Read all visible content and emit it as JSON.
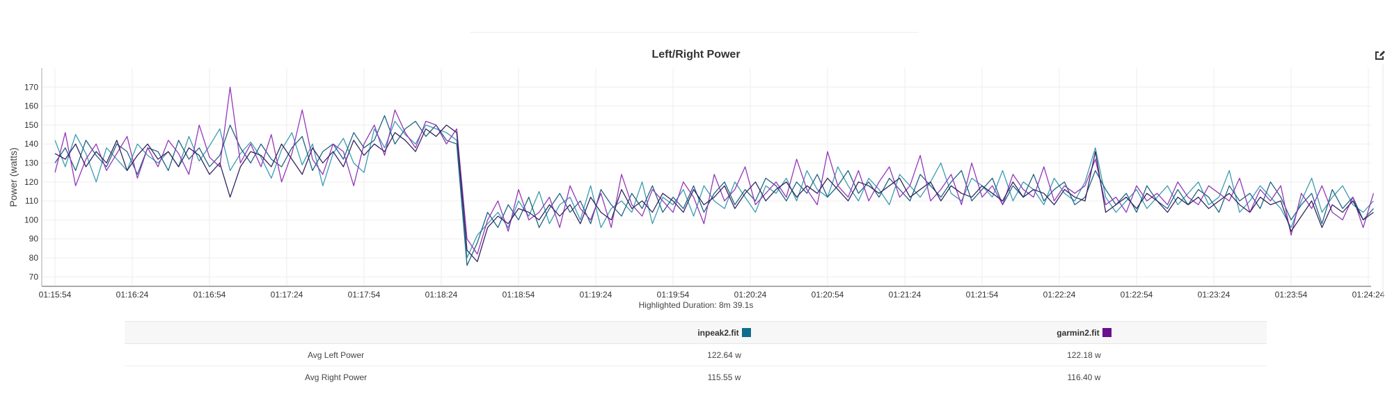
{
  "chart_data": {
    "type": "line",
    "title": "Left/Right Power",
    "ylabel": "Power (watts)",
    "xlabel": "",
    "ylim": [
      65,
      180
    ],
    "yticks": [
      70,
      80,
      90,
      100,
      110,
      120,
      130,
      140,
      150,
      160,
      170
    ],
    "xticks": [
      "01:15:54",
      "01:16:24",
      "01:16:54",
      "01:17:24",
      "01:17:54",
      "01:18:24",
      "01:18:54",
      "01:19:24",
      "01:19:54",
      "01:20:24",
      "01:20:54",
      "01:21:24",
      "01:21:54",
      "01:22:24",
      "01:22:54",
      "01:23:24",
      "01:23:54",
      "01:24:24"
    ],
    "x_range": [
      "01:15:54",
      "01:24:26"
    ],
    "sample_interval_s": 4,
    "grid": true,
    "series": [
      {
        "color": "#3a9cb0",
        "values": [
          142,
          128,
          145,
          135,
          120,
          138,
          132,
          126,
          140,
          134,
          130,
          136,
          128,
          144,
          131,
          139,
          148,
          126,
          135,
          141,
          133,
          122,
          137,
          146,
          129,
          140,
          118,
          135,
          143,
          130,
          125,
          148,
          138,
          152,
          145,
          140,
          150,
          148,
          146,
          142,
          80,
          92,
          98,
          104,
          96,
          110,
          102,
          115,
          98,
          108,
          112,
          100,
          118,
          96,
          106,
          110,
          104,
          120,
          98,
          112,
          108,
          116,
          102,
          118,
          110,
          106,
          120,
          112,
          104,
          118,
          114,
          122,
          110,
          126,
          116,
          112,
          128,
          118,
          110,
          122,
          116,
          108,
          124,
          118,
          112,
          120,
          130,
          114,
          110,
          122,
          118,
          112,
          126,
          110,
          120,
          116,
          108,
          122,
          114,
          110,
          120,
          138,
          112,
          104,
          110,
          116,
          106,
          112,
          118,
          108,
          114,
          120,
          108,
          112,
          126,
          104,
          110,
          118,
          112,
          106,
          96,
          110,
          122,
          104,
          112,
          118,
          108,
          104,
          110
        ]
      },
      {
        "color": "#1f6380",
        "values": [
          130,
          138,
          126,
          142,
          134,
          128,
          140,
          136,
          124,
          138,
          136,
          126,
          142,
          132,
          138,
          128,
          134,
          150,
          138,
          130,
          140,
          132,
          128,
          138,
          144,
          126,
          136,
          140,
          132,
          146,
          138,
          142,
          155,
          140,
          148,
          152,
          144,
          150,
          142,
          140,
          76,
          88,
          104,
          96,
          108,
          100,
          112,
          96,
          106,
          114,
          104,
          110,
          98,
          116,
          108,
          102,
          114,
          106,
          118,
          104,
          112,
          106,
          118,
          104,
          114,
          120,
          108,
          116,
          110,
          122,
          118,
          110,
          120,
          114,
          124,
          112,
          118,
          126,
          114,
          120,
          112,
          122,
          116,
          110,
          124,
          118,
          112,
          120,
          126,
          110,
          116,
          122,
          108,
          118,
          112,
          124,
          110,
          116,
          120,
          108,
          112,
          126,
          116,
          108,
          114,
          104,
          118,
          110,
          106,
          116,
          108,
          116,
          112,
          104,
          118,
          110,
          114,
          106,
          120,
          112,
          100,
          108,
          114,
          98,
          116,
          106,
          112,
          100,
          106
        ]
      },
      {
        "color": "#9437b8",
        "values": [
          125,
          146,
          118,
          132,
          140,
          126,
          135,
          144,
          122,
          138,
          128,
          142,
          135,
          124,
          150,
          133,
          128,
          170,
          130,
          140,
          128,
          145,
          120,
          135,
          158,
          132,
          124,
          140,
          136,
          118,
          140,
          150,
          134,
          158,
          146,
          138,
          152,
          150,
          140,
          148,
          90,
          82,
          100,
          110,
          94,
          116,
          100,
          104,
          112,
          96,
          118,
          106,
          100,
          114,
          96,
          124,
          108,
          102,
          116,
          110,
          104,
          120,
          112,
          98,
          124,
          110,
          116,
          128,
          108,
          114,
          120,
          112,
          132,
          116,
          108,
          136,
          118,
          112,
          126,
          110,
          120,
          128,
          112,
          118,
          134,
          110,
          116,
          124,
          108,
          130,
          112,
          118,
          108,
          124,
          116,
          112,
          128,
          110,
          118,
          114,
          118,
          132,
          108,
          112,
          104,
          118,
          110,
          114,
          108,
          120,
          112,
          108,
          118,
          114,
          110,
          122,
          104,
          116,
          110,
          118,
          92,
          114,
          106,
          118,
          104,
          100,
          112,
          96,
          114
        ]
      },
      {
        "color": "#33235f",
        "values": [
          135,
          132,
          140,
          128,
          136,
          130,
          142,
          126,
          134,
          140,
          132,
          136,
          128,
          138,
          134,
          124,
          130,
          112,
          128,
          136,
          134,
          128,
          140,
          132,
          124,
          138,
          130,
          136,
          128,
          142,
          134,
          140,
          136,
          146,
          142,
          136,
          148,
          144,
          150,
          146,
          84,
          78,
          96,
          102,
          98,
          106,
          104,
          100,
          108,
          102,
          108,
          98,
          112,
          104,
          100,
          116,
          106,
          110,
          104,
          114,
          110,
          104,
          116,
          108,
          112,
          118,
          106,
          114,
          120,
          110,
          116,
          120,
          112,
          118,
          114,
          122,
          116,
          110,
          120,
          118,
          114,
          118,
          122,
          112,
          116,
          120,
          110,
          118,
          114,
          112,
          118,
          114,
          110,
          120,
          112,
          116,
          114,
          108,
          116,
          112,
          110,
          136,
          104,
          108,
          112,
          106,
          114,
          110,
          104,
          112,
          108,
          112,
          106,
          110,
          114,
          108,
          104,
          112,
          108,
          110,
          94,
          102,
          110,
          96,
          108,
          104,
          110,
          100,
          104
        ]
      }
    ]
  },
  "icons": {
    "edit": "edit-icon"
  },
  "highlighted_duration": "Highlighted Duration: 8m 39.1s",
  "table": {
    "columns": [
      {
        "label": "",
        "color": null
      },
      {
        "label": "inpeak2.fit",
        "color": "#0e6d8c"
      },
      {
        "label": "garmin2.fit",
        "color": "#6a0f8f"
      }
    ],
    "rows": [
      {
        "label": "Avg Left Power",
        "values": [
          "122.64 w",
          "122.18 w"
        ]
      },
      {
        "label": "Avg Right Power",
        "values": [
          "115.55 w",
          "116.40 w"
        ]
      }
    ]
  }
}
